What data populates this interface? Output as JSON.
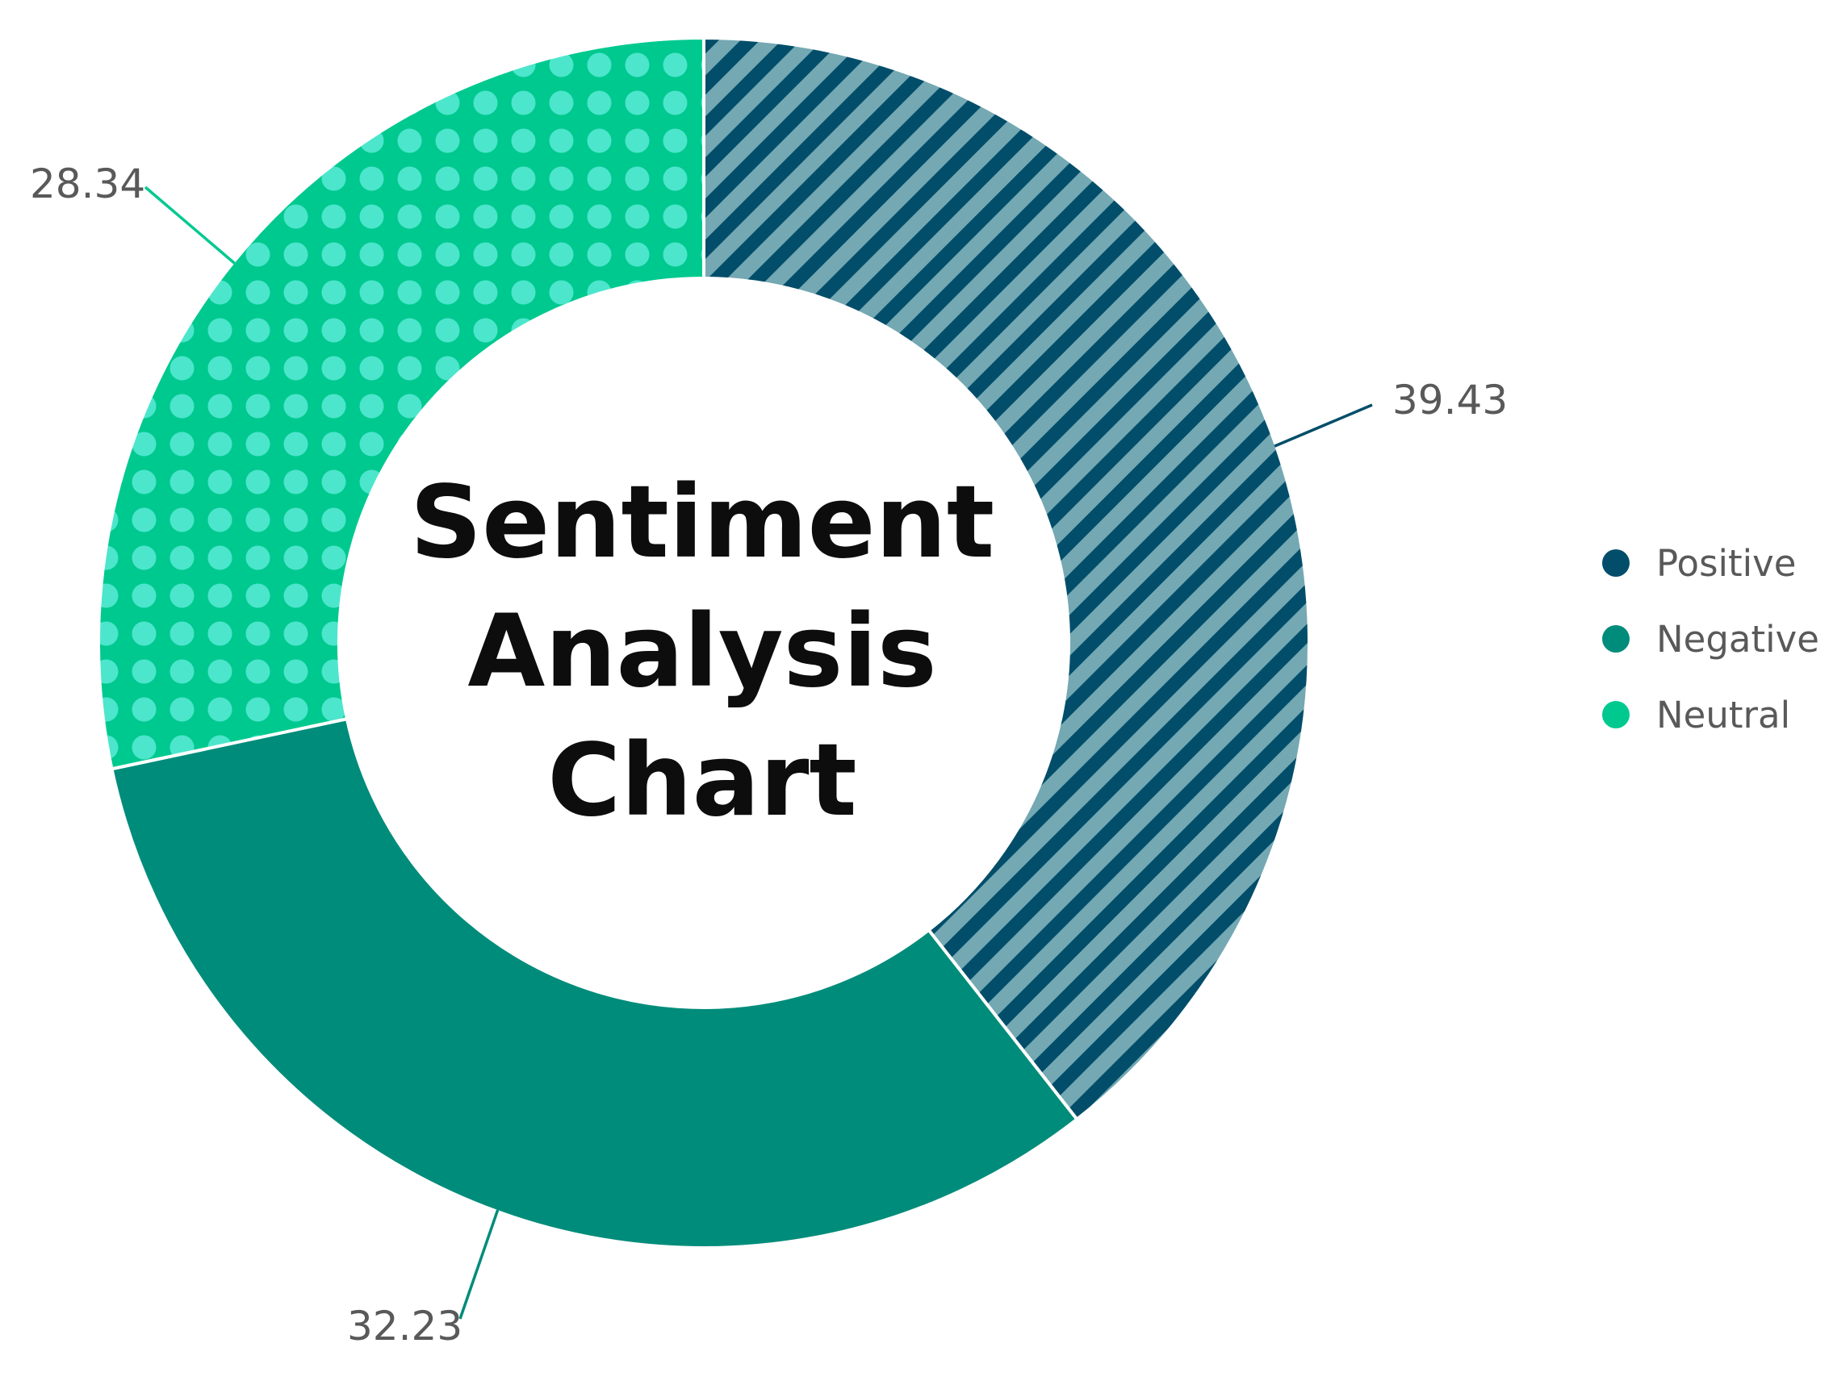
{
  "chart_data": {
    "type": "pie",
    "variant": "donut",
    "title": "Sentiment Analysis Chart",
    "title_lines": [
      "Sentiment",
      "Analysis",
      "Chart"
    ],
    "categories": [
      "Positive",
      "Negative",
      "Neutral"
    ],
    "values": [
      39.43,
      32.23,
      28.34
    ],
    "value_labels": [
      "39.43",
      "32.23",
      "28.34"
    ],
    "colors": {
      "Positive": "#024e6a",
      "Positive_stripe_light": "#74a8b3",
      "Negative": "#008c7a",
      "Neutral": "#00c98f",
      "Neutral_dot": "#4ce6cc"
    },
    "patterns": {
      "Positive": "diagonal-stripes",
      "Negative": "solid",
      "Neutral": "dots"
    },
    "start_angle": "12 o'clock",
    "direction": "clockwise",
    "legend": {
      "placement": "right",
      "items": [
        "Positive",
        "Negative",
        "Neutral"
      ]
    }
  }
}
